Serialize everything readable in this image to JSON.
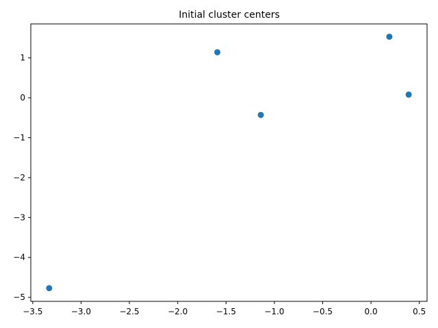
{
  "chart_data": {
    "type": "scatter",
    "title": "Initial cluster centers",
    "xlabel": "",
    "ylabel": "",
    "xlim": [
      -3.52,
      0.58
    ],
    "ylim": [
      -5.1,
      1.85
    ],
    "xticks": [
      -3.5,
      -3.0,
      -2.5,
      -2.0,
      -1.5,
      -1.0,
      -0.5,
      0.0,
      0.5
    ],
    "xtick_labels": [
      "−3.5",
      "−3.0",
      "−2.5",
      "−2.0",
      "−1.5",
      "−1.0",
      "−0.5",
      "0.0",
      "0.5"
    ],
    "yticks": [
      1,
      0,
      -1,
      -2,
      -3,
      -4,
      -5
    ],
    "ytick_labels": [
      "1",
      "0",
      "−1",
      "−2",
      "−3",
      "−4",
      "−5"
    ],
    "grid": false,
    "series": [
      {
        "color": "#1f77b4",
        "points": [
          {
            "x": -3.33,
            "y": -4.77
          },
          {
            "x": -1.59,
            "y": 1.14
          },
          {
            "x": -1.14,
            "y": -0.43
          },
          {
            "x": 0.19,
            "y": 1.53
          },
          {
            "x": 0.39,
            "y": 0.08
          }
        ]
      }
    ]
  }
}
